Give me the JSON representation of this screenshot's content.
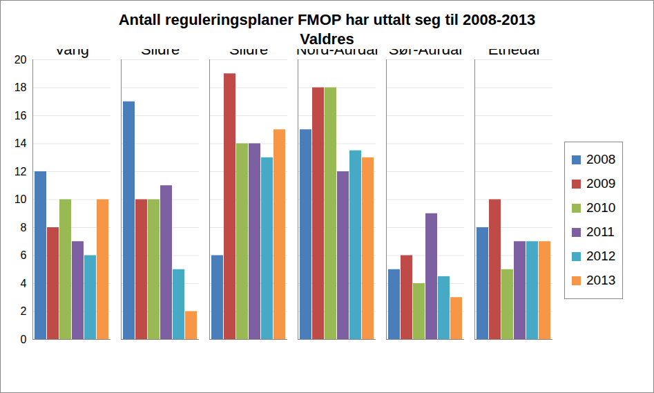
{
  "chart_data": {
    "type": "bar",
    "title": "Antall reguleringsplaner FMOP har uttalt seg til 2008-2013",
    "subtitle": "Valdres",
    "categories": [
      "Vang",
      "Øystre Slidre",
      "Vestre Slidre",
      "Nord-Aurdal",
      "Sør-Aurdal",
      "Etnedal"
    ],
    "series": [
      {
        "name": "2008",
        "color": "#4a7ebb",
        "values": [
          12,
          17,
          6,
          15,
          5,
          8
        ]
      },
      {
        "name": "2009",
        "color": "#be4b48",
        "values": [
          8,
          10,
          19,
          18,
          6,
          10
        ]
      },
      {
        "name": "2010",
        "color": "#98b954",
        "values": [
          10,
          10,
          14,
          18,
          4,
          5
        ]
      },
      {
        "name": "2011",
        "color": "#7d60a0",
        "values": [
          7,
          11,
          14,
          12,
          9,
          7
        ]
      },
      {
        "name": "2012",
        "color": "#46aac5",
        "values": [
          6,
          5,
          13,
          13.5,
          4.5,
          7
        ]
      },
      {
        "name": "2013",
        "color": "#f79646",
        "values": [
          10,
          2,
          15,
          13,
          3,
          7
        ]
      }
    ],
    "ylim": [
      0,
      20
    ],
    "yticks": [
      0,
      2,
      4,
      6,
      8,
      10,
      12,
      14,
      16,
      18,
      20
    ],
    "grid": true,
    "legend": "right"
  }
}
